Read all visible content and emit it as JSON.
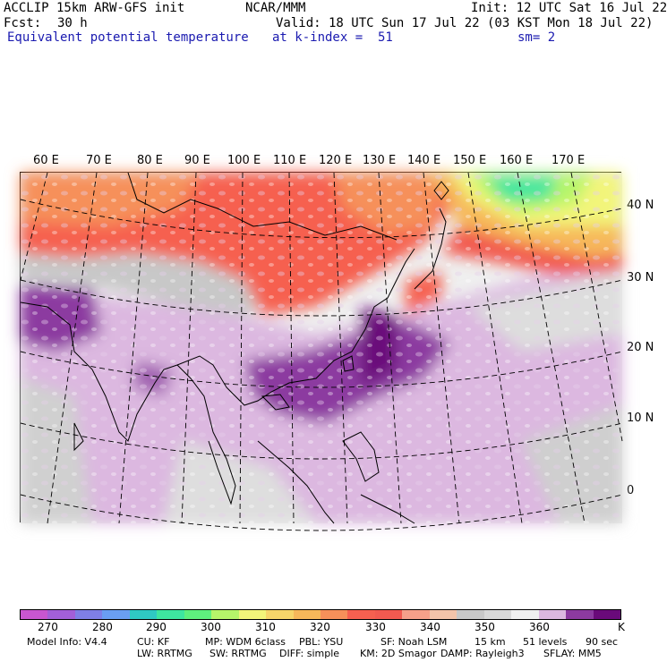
{
  "header": {
    "model": "ACCLIP 15km ARW-GFS init",
    "org": "NCAR/MMM",
    "init": "Init: 12 UTC Sat 16 Jul 22",
    "fcst_label": "Fcst:",
    "fcst_value": "30 h",
    "valid": "Valid: 18 UTC Sun 17 Jul 22 (03 KST Mon 18 Jul 22)",
    "field": "Equivalent potential temperature",
    "level": "at k-index =  51",
    "smooth": "sm= 2"
  },
  "map": {
    "lon_labels": [
      "60 E",
      "70 E",
      "80 E",
      "90 E",
      "100 E",
      "110 E",
      "120 E",
      "130 E",
      "140 E",
      "150 E",
      "160 E",
      "170 E"
    ],
    "lat_labels": [
      "40 N",
      "30 N",
      "20 N",
      "10 N",
      "0"
    ]
  },
  "colorbar": {
    "colors": [
      "#c856d0",
      "#a35fd8",
      "#7f7fe6",
      "#6a9ef2",
      "#2fc9c3",
      "#3ee6a0",
      "#5ef07e",
      "#b6f56a",
      "#f2f57a",
      "#f6d66a",
      "#f6b85a",
      "#f6905a",
      "#f66050",
      "#f25a50",
      "#f6a08a",
      "#f3c4aa",
      "#c8c8c8",
      "#d8d8d8",
      "#efefef",
      "#dcb8e0",
      "#8c3aa0",
      "#6a0a7a"
    ],
    "tick_labels": [
      "270",
      "280",
      "290",
      "300",
      "310",
      "320",
      "330",
      "340",
      "350",
      "360"
    ],
    "unit": "K"
  },
  "footer": {
    "line1": [
      "Model Info: V4.4",
      "CU: KF",
      "MP: WDM 6class",
      "PBL: YSU",
      "SF: Noah LSM",
      "15 km",
      "51 levels",
      "90 sec"
    ],
    "line2": [
      "LW: RRTMG",
      "SW: RRTMG",
      "DIFF: simple",
      "KM: 2D Smagor",
      "DAMP: Rayleigh3",
      "SFLAY: MM5"
    ]
  }
}
